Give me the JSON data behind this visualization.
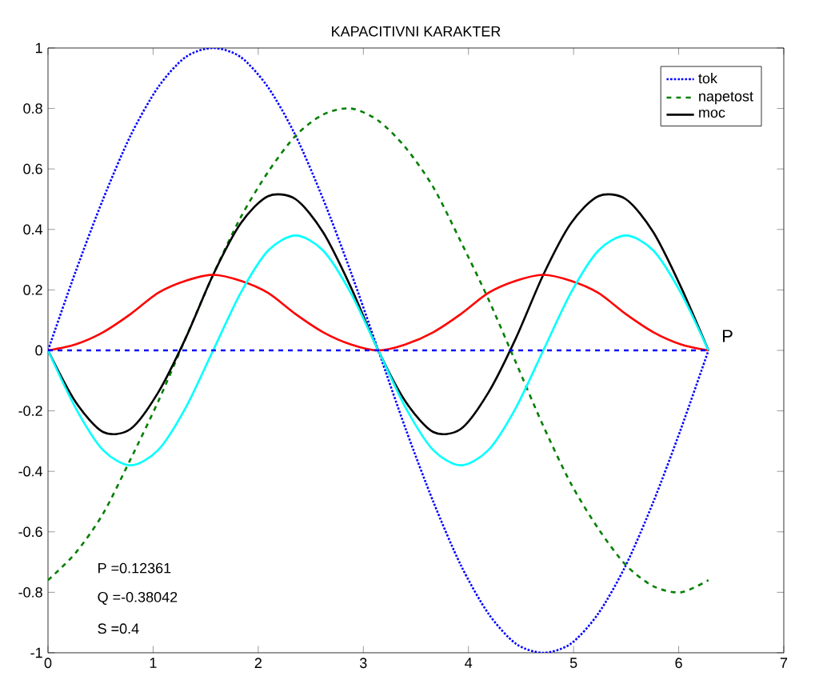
{
  "chart_data": {
    "type": "line",
    "title": "KAPACITIVNI KARAKTER",
    "x": [
      0,
      0.262,
      0.524,
      0.785,
      1.047,
      1.309,
      1.571,
      1.833,
      2.094,
      2.356,
      2.618,
      2.88,
      3.142,
      3.403,
      3.665,
      3.927,
      4.189,
      4.451,
      4.712,
      4.974,
      5.236,
      5.498,
      5.76,
      6.021,
      6.283
    ],
    "series": [
      {
        "name": "tok",
        "color": "#0000ff",
        "line_style": "dotted",
        "values": [
          0,
          0.26,
          0.5,
          0.71,
          0.87,
          0.97,
          1,
          0.97,
          0.87,
          0.71,
          0.5,
          0.26,
          0,
          -0.26,
          -0.5,
          -0.71,
          -0.87,
          -0.97,
          -1,
          -0.97,
          -0.87,
          -0.71,
          -0.5,
          -0.26,
          0
        ]
      },
      {
        "name": "napetost",
        "color": "#007f00",
        "line_style": "dashed",
        "values": [
          -0.76,
          -0.67,
          -0.54,
          -0.36,
          -0.17,
          0.04,
          0.25,
          0.44,
          0.59,
          0.71,
          0.78,
          0.8,
          0.76,
          0.67,
          0.54,
          0.36,
          0.17,
          -0.04,
          -0.25,
          -0.44,
          -0.59,
          -0.71,
          -0.78,
          -0.8,
          -0.76
        ]
      },
      {
        "name": "moc",
        "color": "#000000",
        "line_style": "solid",
        "values": [
          0,
          -0.17,
          -0.27,
          -0.26,
          -0.14,
          0.04,
          0.25,
          0.42,
          0.51,
          0.5,
          0.39,
          0.21,
          0,
          -0.17,
          -0.27,
          -0.26,
          -0.14,
          0.04,
          0.25,
          0.42,
          0.51,
          0.5,
          0.39,
          0.21,
          0
        ]
      },
      {
        "color": "#ff0000",
        "line_style": "solid",
        "values": [
          0,
          0.02,
          0.06,
          0.12,
          0.19,
          0.23,
          0.25,
          0.23,
          0.19,
          0.12,
          0.06,
          0.02,
          0,
          0.02,
          0.06,
          0.12,
          0.19,
          0.23,
          0.25,
          0.23,
          0.19,
          0.12,
          0.06,
          0.02,
          0
        ]
      },
      {
        "color": "#00ffff",
        "line_style": "solid",
        "values": [
          0,
          -0.19,
          -0.33,
          -0.38,
          -0.33,
          -0.19,
          0,
          0.19,
          0.33,
          0.38,
          0.33,
          0.19,
          0,
          -0.19,
          -0.33,
          -0.38,
          -0.33,
          -0.19,
          0,
          0.19,
          0.33,
          0.38,
          0.33,
          0.19,
          0
        ]
      },
      {
        "color": "#0000ff",
        "line_style": "dashed",
        "x": [
          0,
          6.283
        ],
        "values": [
          0,
          0
        ]
      }
    ],
    "xlim": [
      0,
      7
    ],
    "ylim": [
      -1,
      1
    ],
    "xticks": [
      0,
      1,
      2,
      3,
      4,
      5,
      6,
      7
    ],
    "yticks": [
      -1,
      -0.8,
      -0.6,
      -0.4,
      -0.2,
      0,
      0.2,
      0.4,
      0.6,
      0.8,
      1
    ],
    "legend": "top right",
    "annotations": [
      "P =0.12361",
      "Q =-0.38042",
      "S =0.4",
      {
        "text": "P",
        "x": 6.283,
        "y": 0
      }
    ]
  }
}
